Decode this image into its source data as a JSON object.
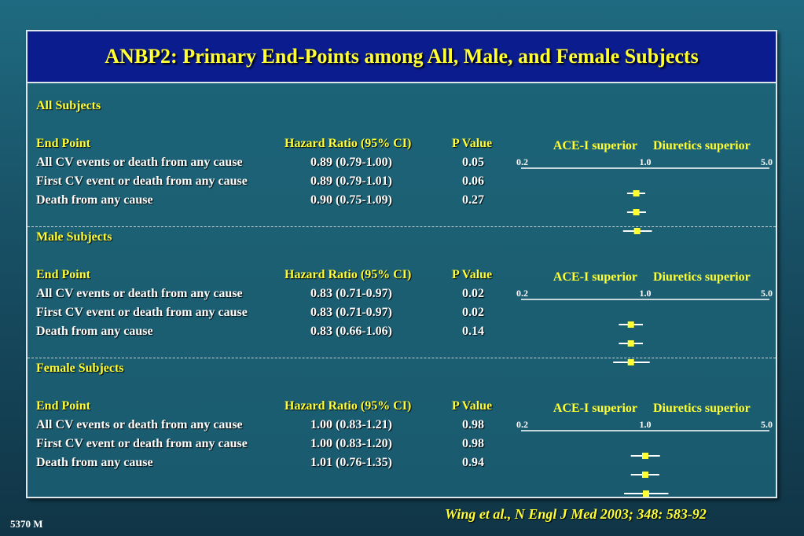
{
  "title": "ANBP2: Primary End-Points among All, Male, and Female Subjects",
  "columns": {
    "end_point": "End Point",
    "hazard_ratio": "Hazard Ratio (95% CI)",
    "p_value": "P Value"
  },
  "favor_left": "ACE-I superior",
  "favor_right": "Diuretics superior",
  "axis_ticks": [
    "0.2",
    "1.0",
    "5.0"
  ],
  "sections": [
    {
      "heading": "All Subjects",
      "rows": [
        {
          "label": "All CV events or death from any cause",
          "hr_text": "0.89 (0.79-1.00)",
          "p": "0.05"
        },
        {
          "label": "First CV event or death from any cause",
          "hr_text": "0.89 (0.79-1.01)",
          "p": "0.06"
        },
        {
          "label": "Death from any cause",
          "hr_text": "0.90 (0.75-1.09)",
          "p": "0.27"
        }
      ]
    },
    {
      "heading": "Male Subjects",
      "rows": [
        {
          "label": "All CV events or death from any cause",
          "hr_text": "0.83 (0.71-0.97)",
          "p": "0.02"
        },
        {
          "label": "First CV event or death from any cause",
          "hr_text": "0.83 (0.71-0.97)",
          "p": "0.02"
        },
        {
          "label": "Death from any cause",
          "hr_text": "0.83 (0.66-1.06)",
          "p": "0.14"
        }
      ]
    },
    {
      "heading": "Female Subjects",
      "rows": [
        {
          "label": "All CV events or death from any cause",
          "hr_text": "1.00 (0.83-1.21)",
          "p": "0.98"
        },
        {
          "label": "First CV event or death from any cause",
          "hr_text": "1.00 (0.83-1.20)",
          "p": "0.98"
        },
        {
          "label": "Death from any cause",
          "hr_text": "1.01 (0.76-1.35)",
          "p": "0.94"
        }
      ]
    }
  ],
  "citation": "Wing et al., N Engl J Med 2003; 348: 583-92",
  "slide_number": "5370 M",
  "colors": {
    "title_bg": "#0b1c8f",
    "accent_yellow": "#ffff33",
    "marker": "#ffff33"
  },
  "chart_data": [
    {
      "type": "forest",
      "title": "All Subjects",
      "scale": "log",
      "xlim": [
        0.2,
        5.0
      ],
      "x_ticks": [
        0.2,
        1.0,
        5.0
      ],
      "categories": [
        "All CV events or death from any cause",
        "First CV event or death from any cause",
        "Death from any cause"
      ],
      "hr": [
        0.89,
        0.89,
        0.9
      ],
      "ci_low": [
        0.79,
        0.79,
        0.75
      ],
      "ci_high": [
        1.0,
        1.01,
        1.09
      ]
    },
    {
      "type": "forest",
      "title": "Male Subjects",
      "scale": "log",
      "xlim": [
        0.2,
        5.0
      ],
      "x_ticks": [
        0.2,
        1.0,
        5.0
      ],
      "categories": [
        "All CV events or death from any cause",
        "First CV event or death from any cause",
        "Death from any cause"
      ],
      "hr": [
        0.83,
        0.83,
        0.83
      ],
      "ci_low": [
        0.71,
        0.71,
        0.66
      ],
      "ci_high": [
        0.97,
        0.97,
        1.06
      ]
    },
    {
      "type": "forest",
      "title": "Female Subjects",
      "scale": "log",
      "xlim": [
        0.2,
        5.0
      ],
      "x_ticks": [
        0.2,
        1.0,
        5.0
      ],
      "categories": [
        "All CV events or death from any cause",
        "First CV event or death from any cause",
        "Death from any cause"
      ],
      "hr": [
        1.0,
        1.0,
        1.01
      ],
      "ci_low": [
        0.83,
        0.83,
        0.76
      ],
      "ci_high": [
        1.21,
        1.2,
        1.35
      ]
    }
  ]
}
